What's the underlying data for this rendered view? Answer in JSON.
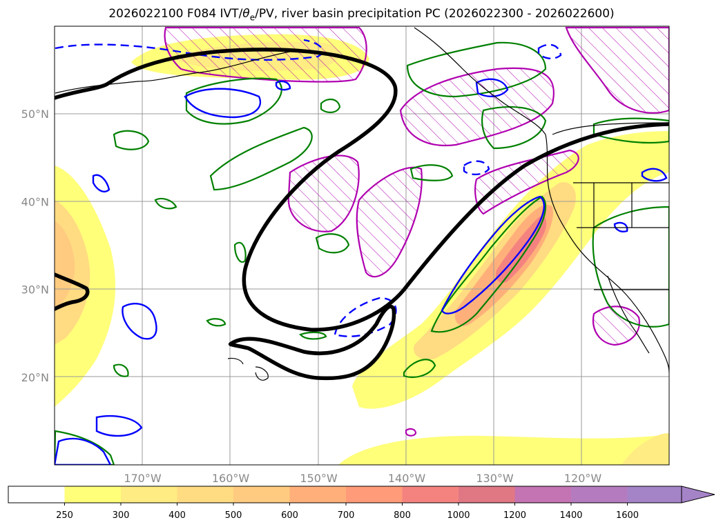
{
  "title": {
    "prefix": "2026022100 F084 IVT/",
    "theta_symbol": "θ",
    "theta_sub": "e",
    "suffix": "/PV, river basin precipitation PC (2026022300 - 2026022600)"
  },
  "map": {
    "lat_labels": [
      {
        "lat": 50,
        "text": "50°N"
      },
      {
        "lat": 40,
        "text": "40°N"
      },
      {
        "lat": 30,
        "text": "30°N"
      },
      {
        "lat": 20,
        "text": "20°N"
      }
    ],
    "lon_labels": [
      {
        "lon": -170,
        "text": "170°W"
      },
      {
        "lon": -160,
        "text": "160°W"
      },
      {
        "lon": -150,
        "text": "150°W"
      },
      {
        "lon": -140,
        "text": "140°W"
      },
      {
        "lon": -130,
        "text": "130°W"
      },
      {
        "lon": -120,
        "text": "120°W"
      }
    ],
    "extent": {
      "lon_min": -180,
      "lon_max": -110.2,
      "lat_min": 10,
      "lat_max": 60
    },
    "colors": {
      "pv_contour": "#000000",
      "theta_e_contour": "#0000ff",
      "precip_contour": "#008000",
      "pv_hatch": "#b000b0",
      "coast": "#000000"
    }
  },
  "colorbar": {
    "levels": [
      "250",
      "300",
      "400",
      "500",
      "600",
      "700",
      "800",
      "1000",
      "1200",
      "1400",
      "1600"
    ],
    "colors": [
      "#ffffff",
      "#ffff7a",
      "#ffec82",
      "#ffdb82",
      "#ffcb80",
      "#ffb07a",
      "#ff9b78",
      "#f48380",
      "#e07884",
      "#c474b2",
      "#b47cbf",
      "#a583c7"
    ]
  }
}
